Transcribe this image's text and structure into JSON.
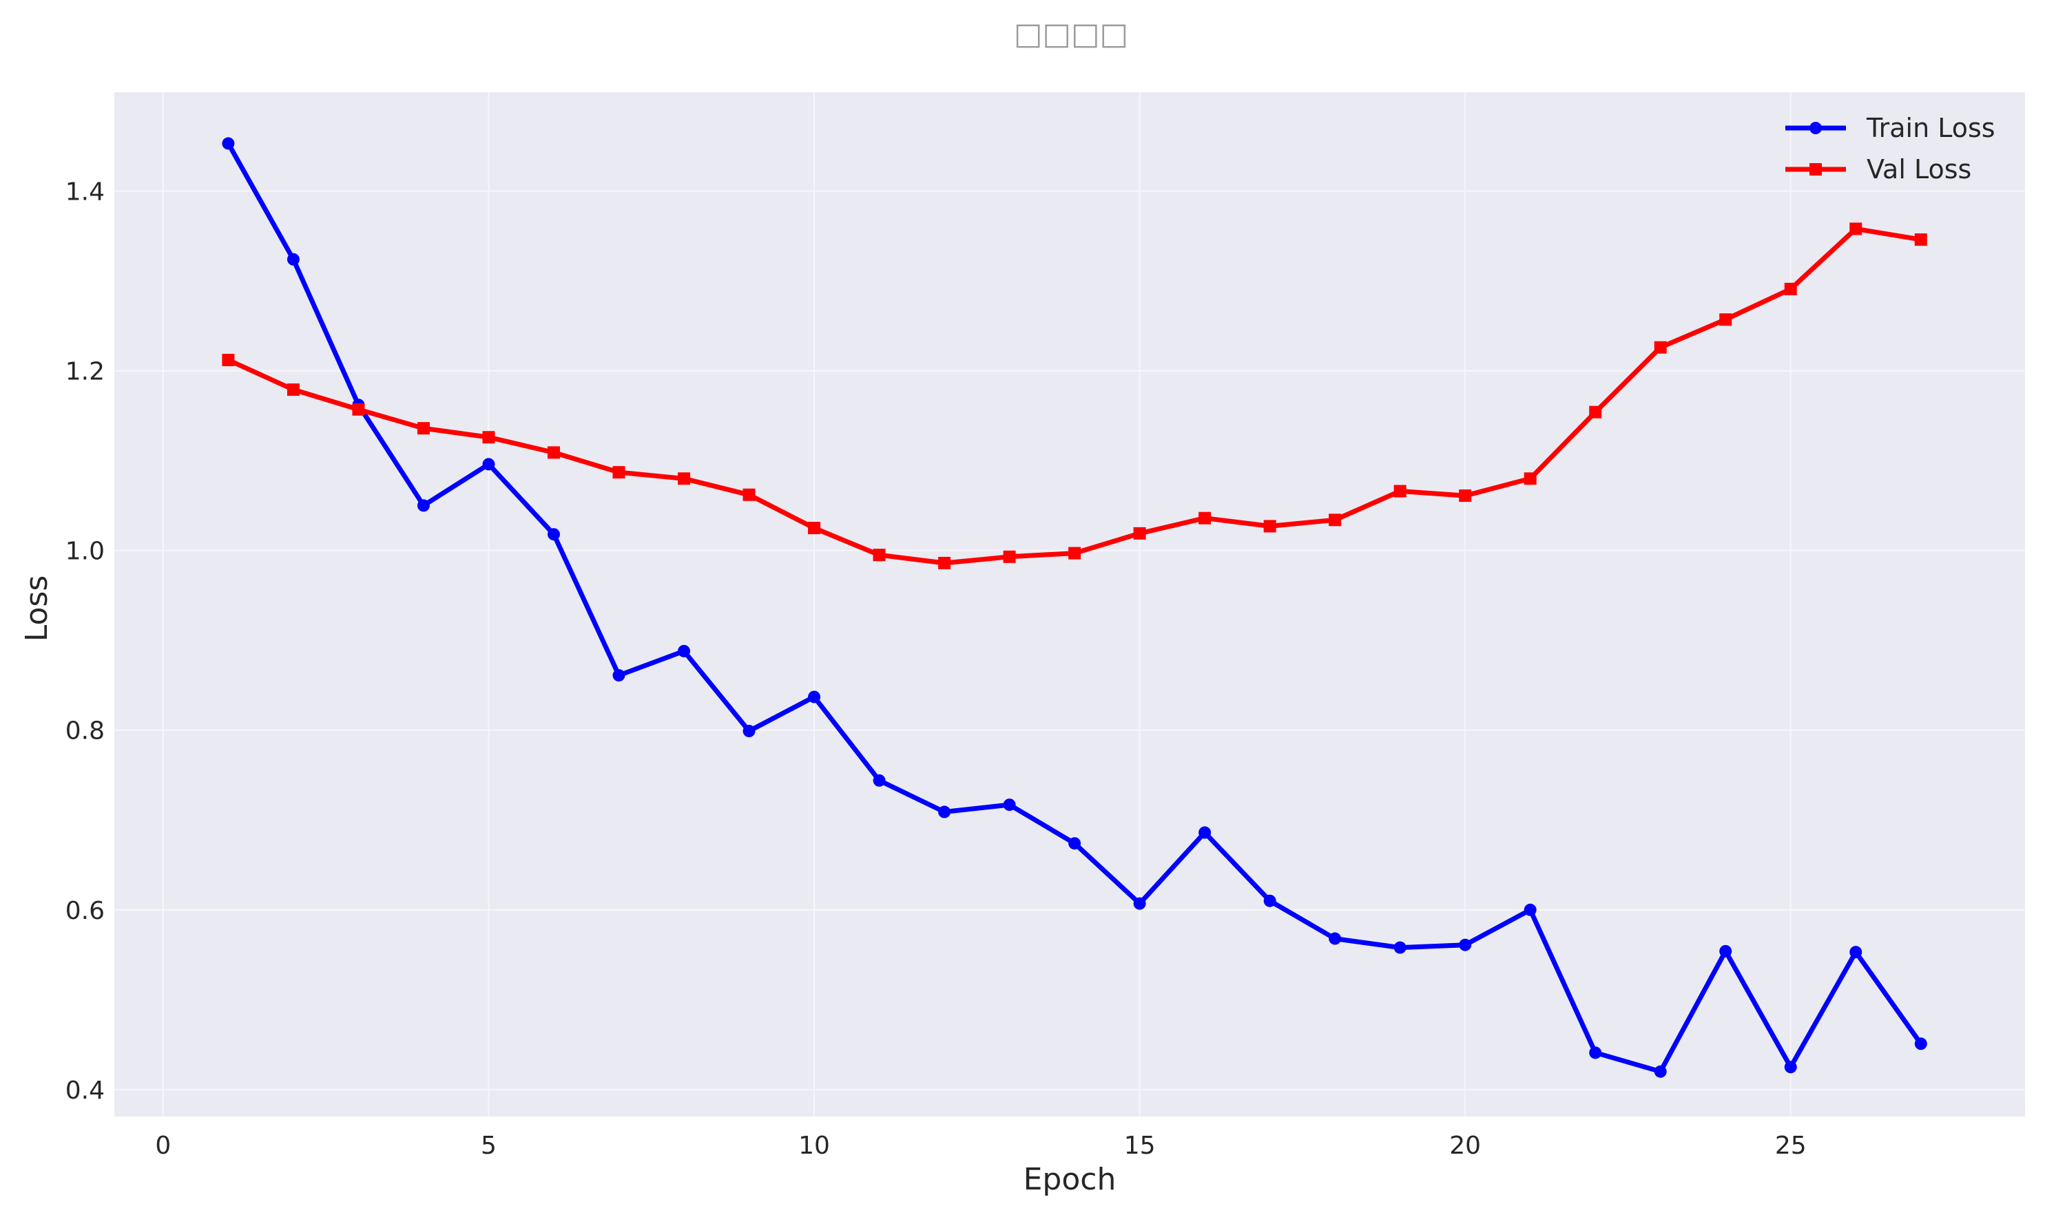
{
  "chart_data": {
    "type": "line",
    "title": "□□□□",
    "xlabel": "Epoch",
    "ylabel": "Loss",
    "xlim": [
      -0.75,
      28.6
    ],
    "ylim": [
      0.37,
      1.51
    ],
    "xticks": [
      0,
      5,
      10,
      15,
      20,
      25
    ],
    "yticks": [
      0.4,
      0.6,
      0.8,
      1.0,
      1.2,
      1.4
    ],
    "xtick_labels": [
      "0",
      "5",
      "10",
      "15",
      "20",
      "25"
    ],
    "ytick_labels": [
      "0.4",
      "0.6",
      "0.8",
      "1.0",
      "1.2",
      "1.4"
    ],
    "grid": true,
    "legend_position": "top-right",
    "background_color": "#EAEAF2",
    "x": [
      1,
      2,
      3,
      4,
      5,
      6,
      7,
      8,
      9,
      10,
      11,
      12,
      13,
      14,
      15,
      16,
      17,
      18,
      19,
      20,
      21,
      22,
      23,
      24,
      25,
      26,
      27
    ],
    "series": [
      {
        "name": "Train Loss",
        "color": "#0000FF",
        "marker": "circle",
        "values": [
          1.453,
          1.324,
          1.162,
          1.05,
          1.096,
          1.018,
          0.861,
          0.888,
          0.799,
          0.837,
          0.744,
          0.709,
          0.717,
          0.674,
          0.607,
          0.686,
          0.61,
          0.568,
          0.558,
          0.561,
          0.6,
          0.441,
          0.42,
          0.554,
          0.425,
          0.553,
          0.451
        ]
      },
      {
        "name": "Val Loss",
        "color": "#FF0000",
        "marker": "square",
        "values": [
          1.212,
          1.179,
          1.157,
          1.136,
          1.126,
          1.109,
          1.087,
          1.08,
          1.062,
          1.025,
          0.995,
          0.986,
          0.993,
          0.997,
          1.019,
          1.036,
          1.027,
          1.034,
          1.066,
          1.061,
          1.08,
          1.154,
          1.226,
          1.257,
          1.291,
          1.358,
          1.346
        ]
      }
    ]
  }
}
